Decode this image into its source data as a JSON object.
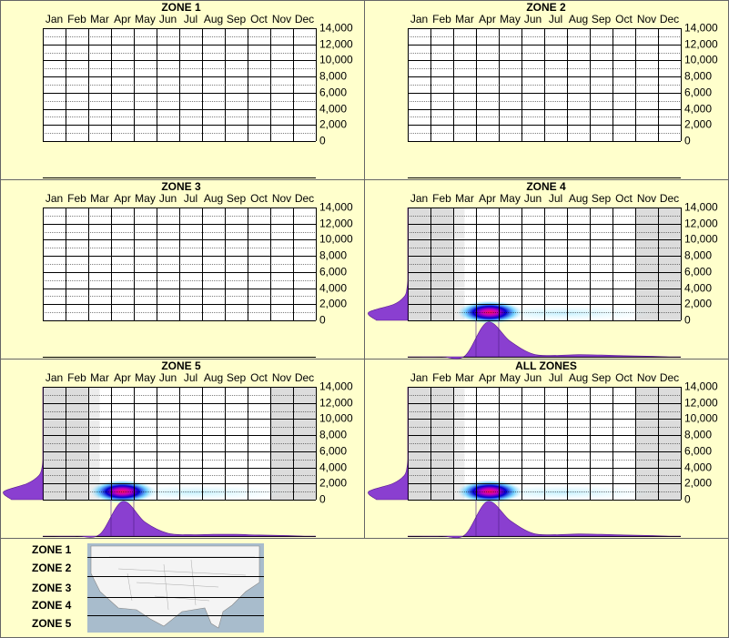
{
  "chart_data": [
    {
      "type": "heatmap",
      "title": "ZONE 1",
      "categories": [
        "Jan",
        "Feb",
        "Mar",
        "Apr",
        "May",
        "Jun",
        "Jul",
        "Aug",
        "Sep",
        "Oct",
        "Nov",
        "Dec"
      ],
      "ylim": [
        0,
        14000
      ],
      "yticks": [
        0,
        {
          "value": 2000,
          "label": "2,000"
        },
        {
          "value": 4000,
          "label": "4,000"
        },
        {
          "value": 6000,
          "label": "6,000"
        },
        {
          "value": 8000,
          "label": "8,000"
        },
        {
          "value": 10000,
          "label": "10,000"
        },
        {
          "value": 12000,
          "label": "12,000"
        },
        {
          "value": 14000,
          "label": "14,000"
        }
      ],
      "minor_yticks": [
        1000,
        3000,
        5000,
        7000,
        9000,
        11000,
        13000
      ]
    },
    {
      "type": "heatmap",
      "title": "ZONE 2",
      "categories": [
        "Jan",
        "Feb",
        "Mar",
        "Apr",
        "May",
        "Jun",
        "Jul",
        "Aug",
        "Sep",
        "Oct",
        "Nov",
        "Dec"
      ],
      "ylim": [
        0,
        14000
      ],
      "yticks": [
        0,
        {
          "value": 2000,
          "label": "2,000"
        },
        {
          "value": 4000,
          "label": "4,000"
        },
        {
          "value": 6000,
          "label": "6,000"
        },
        {
          "value": 8000,
          "label": "8,000"
        },
        {
          "value": 10000,
          "label": "10,000"
        },
        {
          "value": 12000,
          "label": "12,000"
        },
        {
          "value": 14000,
          "label": "14,000"
        }
      ],
      "minor_yticks": [
        1000,
        3000,
        5000,
        7000,
        9000,
        11000,
        13000
      ]
    },
    {
      "type": "heatmap",
      "title": "ZONE 3",
      "categories": [
        "Jan",
        "Feb",
        "Mar",
        "Apr",
        "May",
        "Jun",
        "Jul",
        "Aug",
        "Sep",
        "Oct",
        "Nov",
        "Dec"
      ],
      "ylim": [
        0,
        14000
      ],
      "yticks": [
        0,
        {
          "value": 2000,
          "label": "2,000"
        },
        {
          "value": 4000,
          "label": "4,000"
        },
        {
          "value": 6000,
          "label": "6,000"
        },
        {
          "value": 8000,
          "label": "8,000"
        },
        {
          "value": 10000,
          "label": "10,000"
        },
        {
          "value": 12000,
          "label": "12,000"
        },
        {
          "value": 14000,
          "label": "14,000"
        }
      ],
      "minor_yticks": [
        1000,
        3000,
        5000,
        7000,
        9000,
        11000,
        13000
      ]
    },
    {
      "type": "heatmap",
      "title": "ZONE 4",
      "categories": [
        "Jan",
        "Feb",
        "Mar",
        "Apr",
        "May",
        "Jun",
        "Jul",
        "Aug",
        "Sep",
        "Oct",
        "Nov",
        "Dec"
      ],
      "ylim": [
        0,
        14000
      ],
      "yticks": [
        0,
        {
          "value": 2000,
          "label": "2,000"
        },
        {
          "value": 4000,
          "label": "4,000"
        },
        {
          "value": 6000,
          "label": "6,000"
        },
        {
          "value": 8000,
          "label": "8,000"
        },
        {
          "value": 10000,
          "label": "10,000"
        },
        {
          "value": 12000,
          "label": "12,000"
        },
        {
          "value": 14000,
          "label": "14,000"
        }
      ],
      "minor_yticks": [
        1000,
        3000,
        5000,
        7000,
        9000,
        11000,
        13000
      ],
      "shaded_before": 2.5,
      "shaded_after": 10,
      "hotspot": {
        "month": 3.6,
        "elevation": 1000
      },
      "x_density": [
        0,
        0,
        0.02,
        1,
        0.45,
        0.08,
        0.04,
        0.06,
        0.05,
        0.03,
        0.02,
        0
      ],
      "y_density": [
        0.8,
        1,
        0.35,
        0.08,
        0.02,
        0,
        0,
        0,
        0,
        0,
        0,
        0,
        0,
        0,
        0
      ]
    },
    {
      "type": "heatmap",
      "title": "ZONE 5",
      "categories": [
        "Jan",
        "Feb",
        "Mar",
        "Apr",
        "May",
        "Jun",
        "Jul",
        "Aug",
        "Sep",
        "Oct",
        "Nov",
        "Dec"
      ],
      "ylim": [
        0,
        14000
      ],
      "yticks": [
        0,
        {
          "value": 2000,
          "label": "2,000"
        },
        {
          "value": 4000,
          "label": "4,000"
        },
        {
          "value": 6000,
          "label": "6,000"
        },
        {
          "value": 8000,
          "label": "8,000"
        },
        {
          "value": 10000,
          "label": "10,000"
        },
        {
          "value": 12000,
          "label": "12,000"
        },
        {
          "value": 14000,
          "label": "14,000"
        }
      ],
      "minor_yticks": [
        1000,
        3000,
        5000,
        7000,
        9000,
        11000,
        13000
      ],
      "shaded_before": 2.5,
      "shaded_after": 10,
      "hotspot": {
        "month": 3.5,
        "elevation": 1000
      },
      "x_density": [
        0,
        0,
        0.05,
        1,
        0.4,
        0.08,
        0.04,
        0.05,
        0.05,
        0.03,
        0.02,
        0
      ],
      "y_density": [
        0.8,
        1,
        0.4,
        0.1,
        0.02,
        0,
        0,
        0,
        0,
        0,
        0,
        0,
        0,
        0,
        0
      ]
    },
    {
      "type": "heatmap",
      "title": "ALL ZONES",
      "categories": [
        "Jan",
        "Feb",
        "Mar",
        "Apr",
        "May",
        "Jun",
        "Jul",
        "Aug",
        "Sep",
        "Oct",
        "Nov",
        "Dec"
      ],
      "ylim": [
        0,
        14000
      ],
      "yticks": [
        0,
        {
          "value": 2000,
          "label": "2,000"
        },
        {
          "value": 4000,
          "label": "4,000"
        },
        {
          "value": 6000,
          "label": "6,000"
        },
        {
          "value": 8000,
          "label": "8,000"
        },
        {
          "value": 10000,
          "label": "10,000"
        },
        {
          "value": 12000,
          "label": "12,000"
        },
        {
          "value": 14000,
          "label": "14,000"
        }
      ],
      "minor_yticks": [
        1000,
        3000,
        5000,
        7000,
        9000,
        11000,
        13000
      ],
      "shaded_before": 2.5,
      "shaded_after": 10,
      "hotspot": {
        "month": 3.6,
        "elevation": 1000
      },
      "x_density": [
        0,
        0,
        0.03,
        1,
        0.45,
        0.08,
        0.04,
        0.06,
        0.05,
        0.03,
        0.02,
        0
      ],
      "y_density": [
        0.8,
        1,
        0.38,
        0.09,
        0.02,
        0,
        0,
        0,
        0,
        0,
        0,
        0,
        0,
        0,
        0
      ]
    }
  ],
  "map": {
    "zones": [
      "ZONE 1",
      "ZONE 2",
      "ZONE 3",
      "ZONE 4",
      "ZONE 5"
    ]
  }
}
